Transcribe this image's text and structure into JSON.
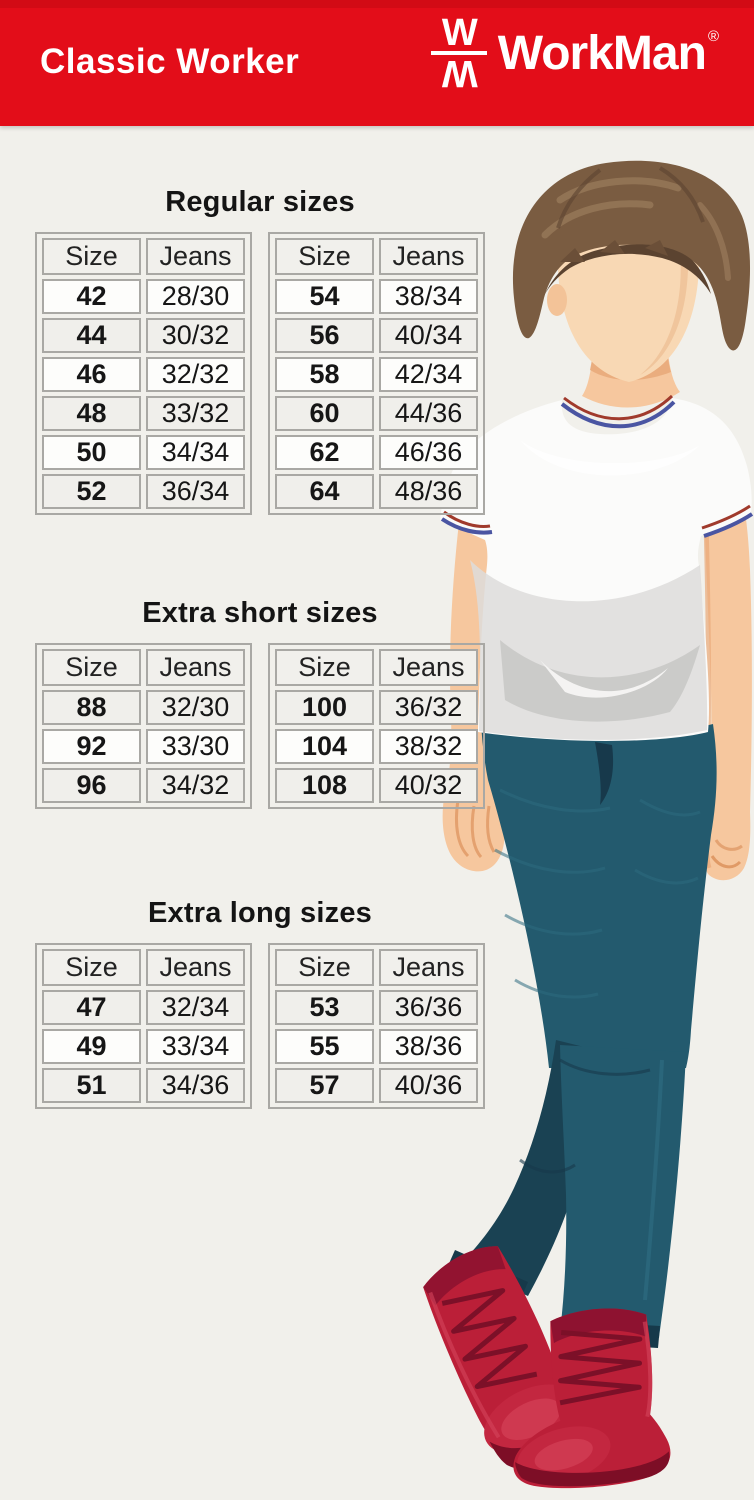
{
  "header": {
    "product_line": "Classic Worker",
    "brand": "WorkMan",
    "registered_mark": "®",
    "logo_monogram_top": "W",
    "logo_monogram_bottom": "W"
  },
  "sections": [
    {
      "title": "Regular sizes",
      "tables": [
        {
          "headers": [
            "Size",
            "Jeans"
          ],
          "rows": [
            [
              "42",
              "28/30"
            ],
            [
              "44",
              "30/32"
            ],
            [
              "46",
              "32/32"
            ],
            [
              "48",
              "33/32"
            ],
            [
              "50",
              "34/34"
            ],
            [
              "52",
              "36/34"
            ]
          ]
        },
        {
          "headers": [
            "Size",
            "Jeans"
          ],
          "rows": [
            [
              "54",
              "38/34"
            ],
            [
              "56",
              "40/34"
            ],
            [
              "58",
              "42/34"
            ],
            [
              "60",
              "44/36"
            ],
            [
              "62",
              "46/36"
            ],
            [
              "64",
              "48/36"
            ]
          ]
        }
      ]
    },
    {
      "title": "Extra short sizes",
      "tables": [
        {
          "headers": [
            "Size",
            "Jeans"
          ],
          "rows": [
            [
              "88",
              "32/30"
            ],
            [
              "92",
              "33/30"
            ],
            [
              "96",
              "34/32"
            ]
          ]
        },
        {
          "headers": [
            "Size",
            "Jeans"
          ],
          "rows": [
            [
              "100",
              "36/32"
            ],
            [
              "104",
              "38/32"
            ],
            [
              "108",
              "40/32"
            ]
          ]
        }
      ]
    },
    {
      "title": "Extra long sizes",
      "tables": [
        {
          "headers": [
            "Size",
            "Jeans"
          ],
          "rows": [
            [
              "47",
              "32/34"
            ],
            [
              "49",
              "33/34"
            ],
            [
              "51",
              "34/36"
            ]
          ]
        },
        {
          "headers": [
            "Size",
            "Jeans"
          ],
          "rows": [
            [
              "53",
              "36/36"
            ],
            [
              "55",
              "38/36"
            ],
            [
              "57",
              "40/36"
            ]
          ]
        }
      ]
    }
  ],
  "illustration": {
    "description": "Faceless young man with brown hair wearing a white t-shirt with striped trim, dark teal jeans and red lace-up boots"
  },
  "colors": {
    "brand_red": "#e30d19",
    "page_background": "#f1f0eb",
    "table_border": "#a9a8a4",
    "row_white": "#fdfdfb",
    "row_gray": "#f0efeb",
    "jeans_teal": "#235a6e",
    "boot_red": "#bb1f38",
    "skin": "#f6c79e",
    "hair_brown": "#7a5c41",
    "tshirt_white": "#fbfbfa"
  }
}
